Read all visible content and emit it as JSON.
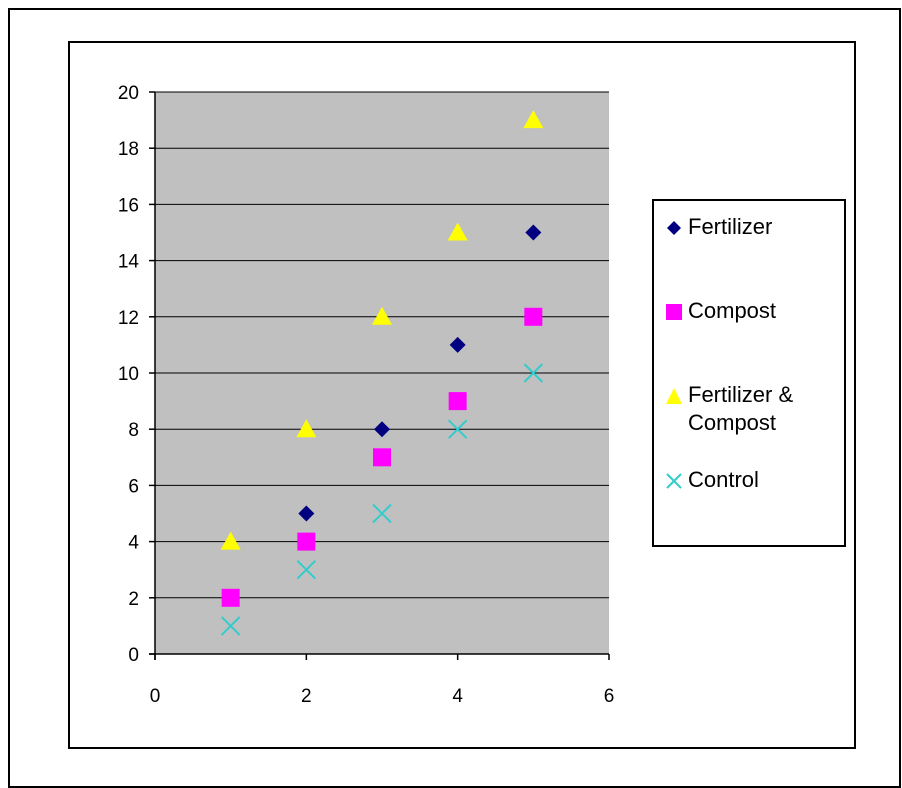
{
  "chart_data": {
    "type": "scatter",
    "title": "",
    "xlabel": "",
    "ylabel": "",
    "xlim": [
      0,
      6
    ],
    "ylim": [
      0,
      20
    ],
    "x_ticks": [
      "0",
      "2",
      "4",
      "6"
    ],
    "y_ticks": [
      "0",
      "2",
      "4",
      "6",
      "8",
      "10",
      "12",
      "14",
      "16",
      "18",
      "20"
    ],
    "grid": "horizontal",
    "plot_background": "#c0c0c0",
    "legend_position": "right",
    "series": [
      {
        "name": "Fertilizer",
        "marker": "diamond",
        "color": "#000080",
        "x": [
          2,
          3,
          4,
          5
        ],
        "y": [
          5,
          8,
          11,
          15
        ]
      },
      {
        "name": "Compost",
        "marker": "square",
        "color": "#ff00ff",
        "x": [
          1,
          2,
          3,
          4,
          5
        ],
        "y": [
          2,
          4,
          7,
          9,
          12
        ]
      },
      {
        "name": "Fertilizer & Compost",
        "marker": "triangle",
        "color": "#ffff00",
        "x": [
          1,
          2,
          3,
          4,
          5
        ],
        "y": [
          4,
          8,
          12,
          15,
          19
        ]
      },
      {
        "name": "Control",
        "marker": "x",
        "color": "#33cccc",
        "x": [
          1,
          2,
          3,
          4,
          5
        ],
        "y": [
          1,
          3,
          5,
          8,
          10
        ]
      }
    ]
  },
  "legend": {
    "items": [
      {
        "label": "Fertilizer",
        "icon": "diamond-icon"
      },
      {
        "label": "Compost",
        "icon": "square-icon"
      },
      {
        "label": "Fertilizer & Compost",
        "icon": "triangle-icon"
      },
      {
        "label": "Control",
        "icon": "x-mark-icon"
      }
    ]
  }
}
